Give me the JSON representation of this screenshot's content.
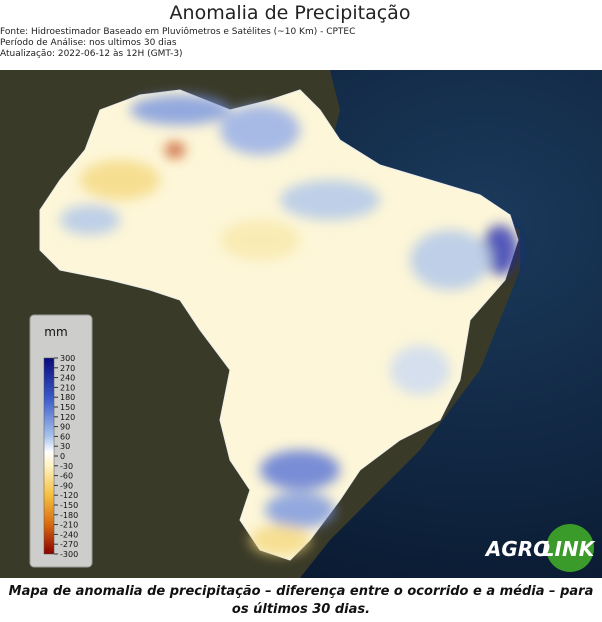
{
  "header": {
    "title": "Anomalia de Precipitação",
    "lines": [
      "Fonte: Hidroestimador Baseado em Pluviômetros e Satélites (~10 Km) - CPTEC",
      "Período de Análise: nos ultimos 30 dias",
      "Atualização: 2022-06-12 às 12H (GMT-3)"
    ]
  },
  "colorbar": {
    "unit": "mm",
    "ticks": [
      300,
      270,
      240,
      210,
      180,
      150,
      120,
      90,
      60,
      30,
      0,
      -30,
      -60,
      -90,
      -120,
      -150,
      -180,
      -210,
      -240,
      -270,
      -300
    ]
  },
  "logo": {
    "left": "AGRO",
    "right": "LINK"
  },
  "caption": "Mapa de anomalia de precipitação – diferença entre o ocorrido e a média – para os últimos 30 dias."
}
